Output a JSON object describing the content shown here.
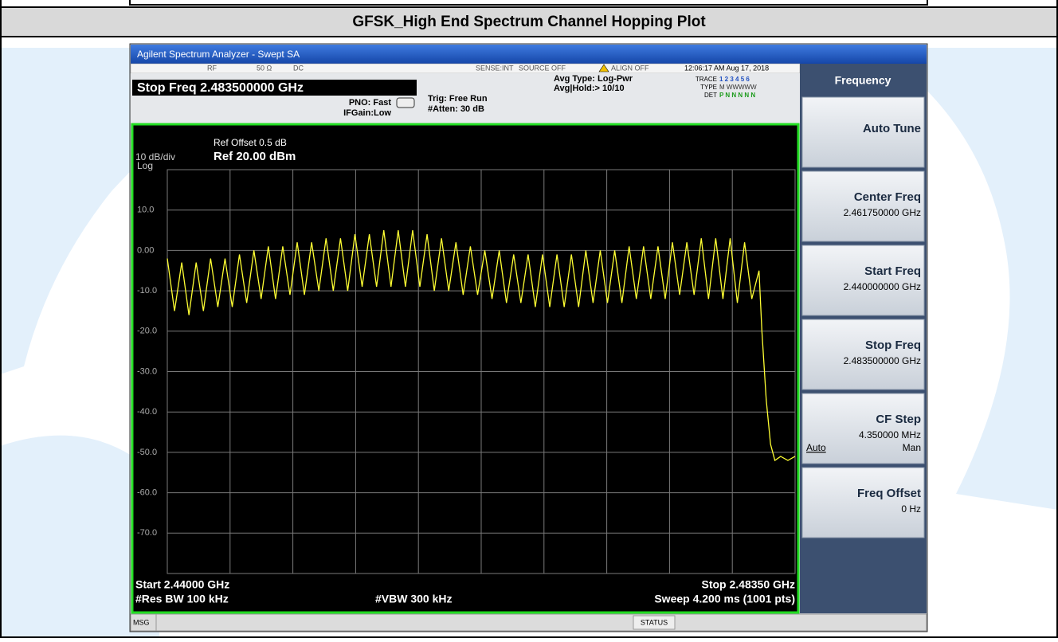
{
  "header": {
    "title": "GFSK_High End Spectrum Channel Hopping Plot"
  },
  "screen": {
    "window_title": "Agilent Spectrum Analyzer - Swept SA",
    "status": [
      "RF",
      "50 Ω",
      "DC",
      "SENSE:INT",
      "SOURCE OFF",
      "ALIGN OFF",
      "12:06:17 AM Aug 17, 2018"
    ],
    "active": "Stop Freq 2.483500000 GHz",
    "pno": "PNO: Fast",
    "ifgain": "IFGain:Low",
    "trig": "Trig: Free Run",
    "atten": "#Atten: 30 dB",
    "avg_type": "Avg Type: Log-Pwr",
    "avg_hold": "Avg|Hold:> 10/10",
    "trace_labels": [
      "TRACE",
      "TYPE",
      "DET"
    ],
    "trace_rows": [
      "1 2 3 4 5 6",
      "M WWWWW",
      "P N N N N N"
    ],
    "ref_offset": "Ref Offset 0.5 dB",
    "scale": "10 dB/div",
    "log": "Log",
    "ref": "Ref 20.00 dBm",
    "start": "Start 2.44000 GHz",
    "stop": "Stop 2.48350 GHz",
    "rbw": "#Res BW 100 kHz",
    "vbw": "#VBW 300 kHz",
    "sweep": "Sweep  4.200 ms (1001 pts)",
    "msg": "MSG",
    "status_label": "STATUS",
    "menu_title": "Frequency",
    "softkeys": [
      {
        "label": "Auto Tune"
      },
      {
        "label": "Center Freq",
        "value": "2.461750000 GHz"
      },
      {
        "label": "Start Freq",
        "value": "2.440000000 GHz"
      },
      {
        "label": "Stop Freq",
        "value": "2.483500000 GHz"
      },
      {
        "label": "CF Step",
        "value": "4.350000 MHz",
        "options": [
          "Auto",
          "Man"
        ]
      },
      {
        "label": "Freq Offset",
        "value": "0 Hz"
      }
    ]
  },
  "chart_data": {
    "type": "line",
    "color": "#ffff33",
    "xlim": [
      2.44,
      2.4835
    ],
    "ylim": [
      -80,
      20
    ],
    "yticks": [
      {
        "value": 10,
        "label": "10.0"
      },
      {
        "value": 0,
        "label": "0.00"
      },
      {
        "value": -10,
        "label": "-10.0"
      },
      {
        "value": -20,
        "label": "-20.0"
      },
      {
        "value": -30,
        "label": "-30.0"
      },
      {
        "value": -40,
        "label": "-40.0"
      },
      {
        "value": -50,
        "label": "-50.0"
      },
      {
        "value": -60,
        "label": "-60.0"
      },
      {
        "value": -70,
        "label": "-70.0"
      }
    ],
    "grid": true,
    "x": [
      2.44,
      2.4405,
      2.441,
      2.4415,
      2.442,
      2.4425,
      2.443,
      2.4435,
      2.444,
      2.4445,
      2.445,
      2.4455,
      2.446,
      2.4465,
      2.447,
      2.4475,
      2.448,
      2.4485,
      2.449,
      2.4495,
      2.45,
      2.4505,
      2.451,
      2.4515,
      2.452,
      2.4525,
      2.453,
      2.4535,
      2.454,
      2.4545,
      2.455,
      2.4555,
      2.456,
      2.4565,
      2.457,
      2.4575,
      2.458,
      2.4585,
      2.459,
      2.4595,
      2.46,
      2.4605,
      2.461,
      2.4615,
      2.462,
      2.4625,
      2.463,
      2.4635,
      2.464,
      2.4645,
      2.465,
      2.4655,
      2.466,
      2.4665,
      2.467,
      2.4675,
      2.468,
      2.4685,
      2.469,
      2.4695,
      2.47,
      2.4705,
      2.471,
      2.4715,
      2.472,
      2.4725,
      2.473,
      2.4735,
      2.474,
      2.4745,
      2.475,
      2.4755,
      2.476,
      2.4765,
      2.477,
      2.4775,
      2.478,
      2.4785,
      2.479,
      2.4795,
      2.48,
      2.4805,
      2.481,
      2.4812,
      2.4815,
      2.4818,
      2.4821,
      2.4825,
      2.483,
      2.4835
    ],
    "values": [
      -2,
      -15,
      -3,
      -16,
      -3,
      -15,
      -2,
      -14,
      -2,
      -14,
      -1,
      -13,
      0,
      -12,
      1,
      -12,
      1,
      -11,
      2,
      -11,
      2,
      -10,
      3,
      -10,
      3,
      -10,
      4,
      -9,
      4,
      -9,
      5,
      -9,
      5,
      -9,
      5,
      -9,
      4,
      -10,
      3,
      -10,
      2,
      -11,
      1,
      -11,
      0,
      -12,
      0,
      -13,
      -1,
      -13,
      -1,
      -14,
      -1,
      -14,
      -1,
      -14,
      -1,
      -14,
      0,
      -13,
      0,
      -13,
      0,
      -13,
      1,
      -12,
      1,
      -12,
      1,
      -12,
      2,
      -11,
      2,
      -11,
      3,
      -12,
      3,
      -12,
      3,
      -13,
      2,
      -12,
      -5,
      -20,
      -37,
      -48,
      -52,
      -51,
      -52,
      -51
    ]
  }
}
